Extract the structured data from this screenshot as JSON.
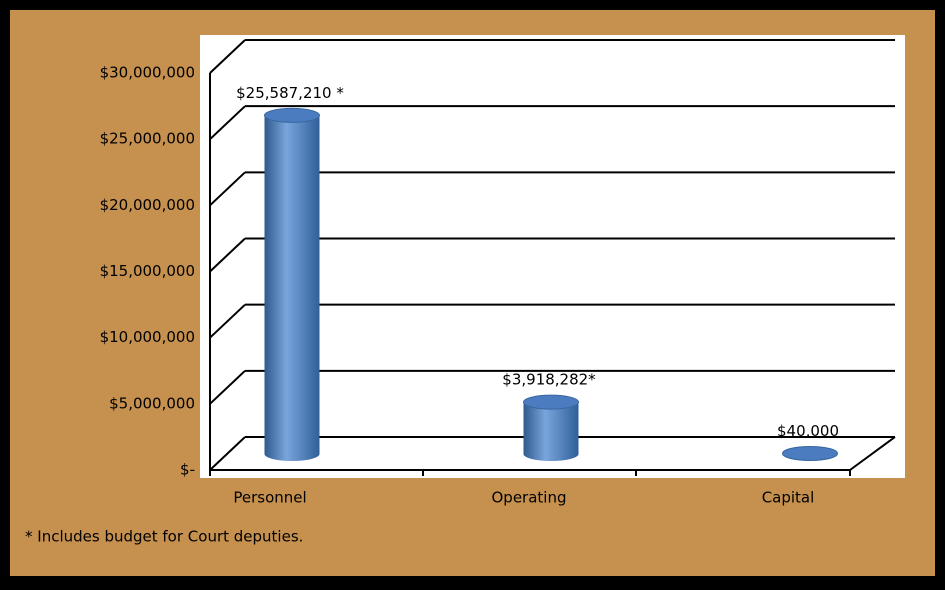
{
  "chart_data": {
    "type": "bar3d",
    "categories": [
      "Personnel",
      "Operating",
      "Capital"
    ],
    "values": [
      25587210,
      3918282,
      40000
    ],
    "value_labels": [
      "$25,587,210 *",
      "$3,918,282*",
      "$40,000"
    ],
    "color": "#4f81bd",
    "ylim": [
      0,
      30000000
    ],
    "yticks": [
      {
        "value": 0,
        "label": "$-"
      },
      {
        "value": 5000000,
        "label": "$5,000,000"
      },
      {
        "value": 10000000,
        "label": "$10,000,000"
      },
      {
        "value": 15000000,
        "label": "$15,000,000"
      },
      {
        "value": 20000000,
        "label": "$20,000,000"
      },
      {
        "value": 25000000,
        "label": "$25,000,000"
      },
      {
        "value": 30000000,
        "label": "$30,000,000"
      }
    ],
    "grid": true,
    "footnote": "* Includes budget for Court deputies."
  }
}
